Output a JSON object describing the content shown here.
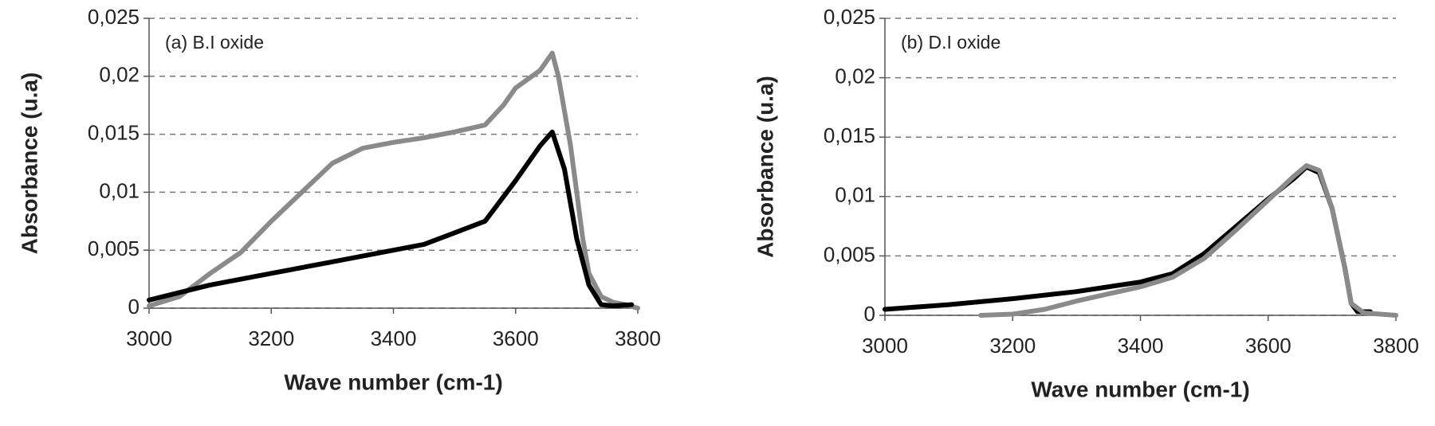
{
  "chart_data": [
    {
      "type": "line",
      "annotation": "(a)  B.I oxide",
      "xlabel": "Wave number (cm-1)",
      "ylabel": "Absorbance (u.a)",
      "xlim": [
        3000,
        3800
      ],
      "ylim": [
        0,
        0.025
      ],
      "xticks": [
        3000,
        3200,
        3400,
        3600,
        3800
      ],
      "yticks": [
        0,
        {
          "value": 0.005,
          "label": "0,005"
        },
        {
          "value": 0.01,
          "label": "0,01"
        },
        {
          "value": 0.015,
          "label": "0,015"
        },
        {
          "value": 0.02,
          "label": "0,02"
        },
        {
          "value": 0.025,
          "label": "0,025"
        }
      ],
      "grid": true,
      "series": [
        {
          "color": "#8a8a8a",
          "x": [
            3000,
            3050,
            3100,
            3150,
            3200,
            3250,
            3300,
            3350,
            3400,
            3450,
            3500,
            3550,
            3580,
            3600,
            3640,
            3660,
            3670,
            3690,
            3700,
            3710,
            3720,
            3740,
            3760,
            3780,
            3800
          ],
          "values": [
            0.0002,
            0.001,
            0.003,
            0.0048,
            0.0075,
            0.01,
            0.0125,
            0.0138,
            0.0143,
            0.0147,
            0.0152,
            0.0158,
            0.0175,
            0.019,
            0.0205,
            0.022,
            0.02,
            0.014,
            0.01,
            0.006,
            0.003,
            0.001,
            0.0005,
            0.0003,
            0
          ]
        },
        {
          "color": "#000000",
          "x": [
            3000,
            3100,
            3200,
            3300,
            3400,
            3450,
            3500,
            3550,
            3600,
            3640,
            3660,
            3680,
            3700,
            3720,
            3740,
            3760,
            3790
          ],
          "values": [
            0.0007,
            0.002,
            0.003,
            0.004,
            0.005,
            0.0055,
            0.0065,
            0.0075,
            0.011,
            0.014,
            0.0152,
            0.012,
            0.006,
            0.002,
            0.0003,
            0.0002,
            0.0003
          ]
        }
      ]
    },
    {
      "type": "line",
      "annotation": "(b)  D.I oxide",
      "xlabel": "Wave number (cm-1)",
      "ylabel": "Absorbance (u.a)",
      "xlim": [
        3000,
        3800
      ],
      "ylim": [
        0,
        0.025
      ],
      "xticks": [
        3000,
        3200,
        3400,
        3600,
        3800
      ],
      "yticks": [
        0,
        {
          "value": 0.005,
          "label": "0,005"
        },
        {
          "value": 0.01,
          "label": "0,01"
        },
        {
          "value": 0.015,
          "label": "0,015"
        },
        {
          "value": 0.02,
          "label": "0,02"
        },
        {
          "value": 0.025,
          "label": "0,025"
        }
      ],
      "grid": true,
      "series": [
        {
          "color": "#000000",
          "x": [
            3000,
            3100,
            3200,
            3300,
            3400,
            3450,
            3500,
            3550,
            3600,
            3640,
            3660,
            3680,
            3700,
            3720,
            3730,
            3740,
            3760
          ],
          "values": [
            0.0005,
            0.0009,
            0.0014,
            0.002,
            0.0028,
            0.0035,
            0.0052,
            0.0075,
            0.0098,
            0.0115,
            0.0125,
            0.012,
            0.009,
            0.004,
            0.001,
            0.0003,
            0.0003
          ]
        },
        {
          "color": "#8a8a8a",
          "x": [
            3150,
            3200,
            3250,
            3300,
            3350,
            3400,
            3450,
            3500,
            3550,
            3600,
            3640,
            3660,
            3680,
            3700,
            3720,
            3730,
            3750,
            3800
          ],
          "values": [
            0,
            0.0001,
            0.0005,
            0.0012,
            0.0018,
            0.0024,
            0.0032,
            0.0048,
            0.0072,
            0.0097,
            0.0117,
            0.0126,
            0.0122,
            0.009,
            0.004,
            0.001,
            0.0002,
            0
          ]
        }
      ]
    }
  ]
}
